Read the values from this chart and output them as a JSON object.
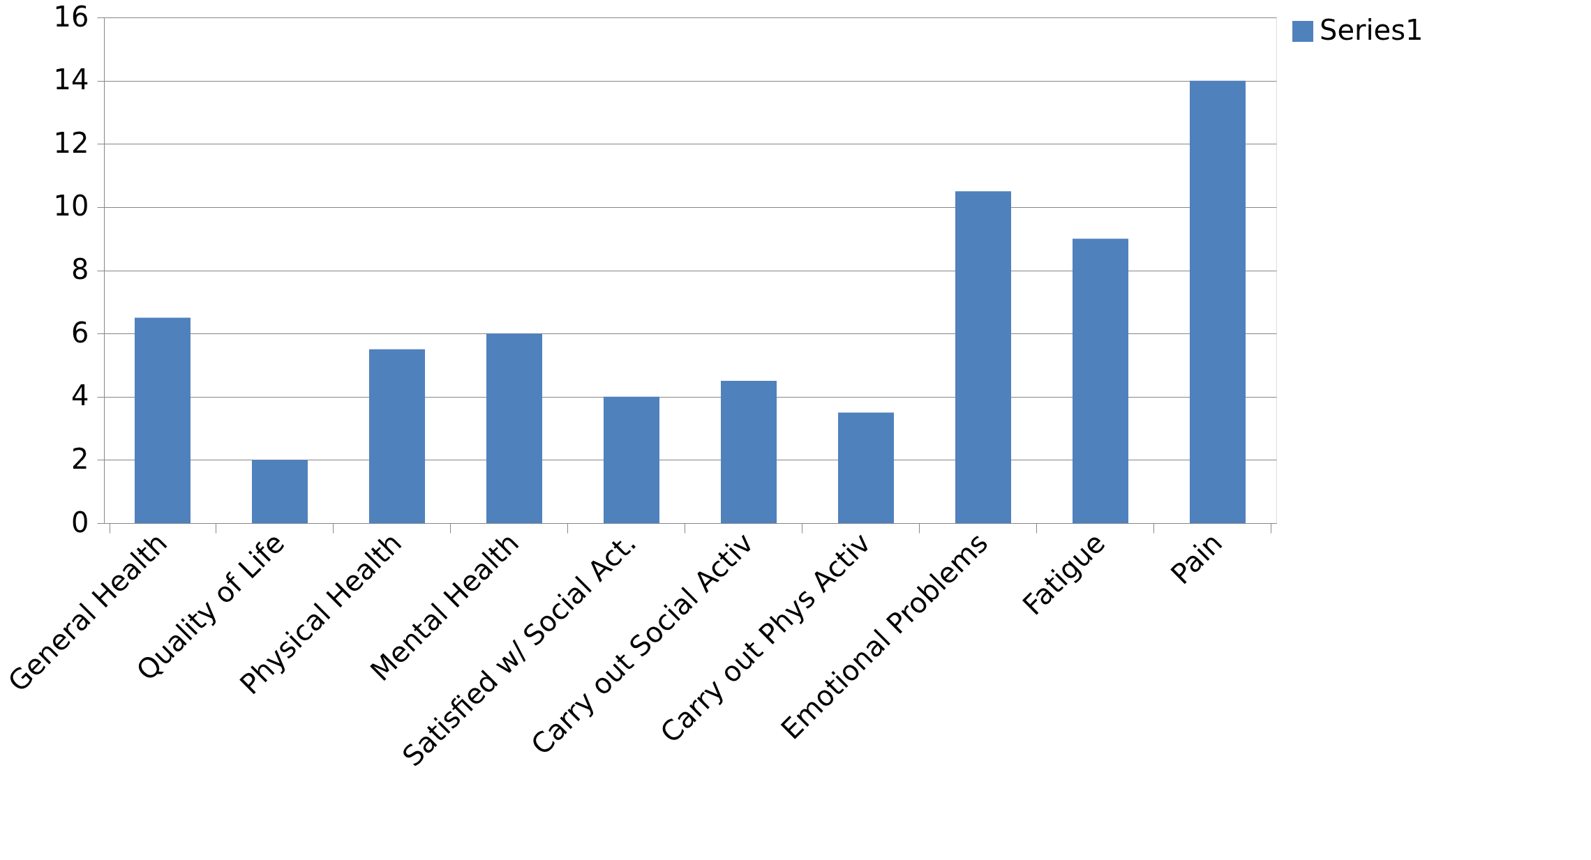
{
  "chart_data": {
    "type": "bar",
    "categories": [
      "General Health",
      "Quality of Life",
      "Physical Health",
      "Mental Health",
      "Satisfied w/ Social Act.",
      "Carry out Social Activ",
      "Carry out Phys Activ",
      "Emotional Problems",
      "Fatigue",
      "Pain"
    ],
    "series": [
      {
        "name": "Series1",
        "color": "#4f81bd",
        "values": [
          6.5,
          2,
          5.5,
          6,
          4,
          4.5,
          3.5,
          10.5,
          9,
          14
        ]
      }
    ],
    "ylim": [
      0,
      16
    ],
    "yticks": [
      0,
      2,
      4,
      6,
      8,
      10,
      12,
      14,
      16
    ],
    "grid": "y",
    "legend": "right"
  }
}
